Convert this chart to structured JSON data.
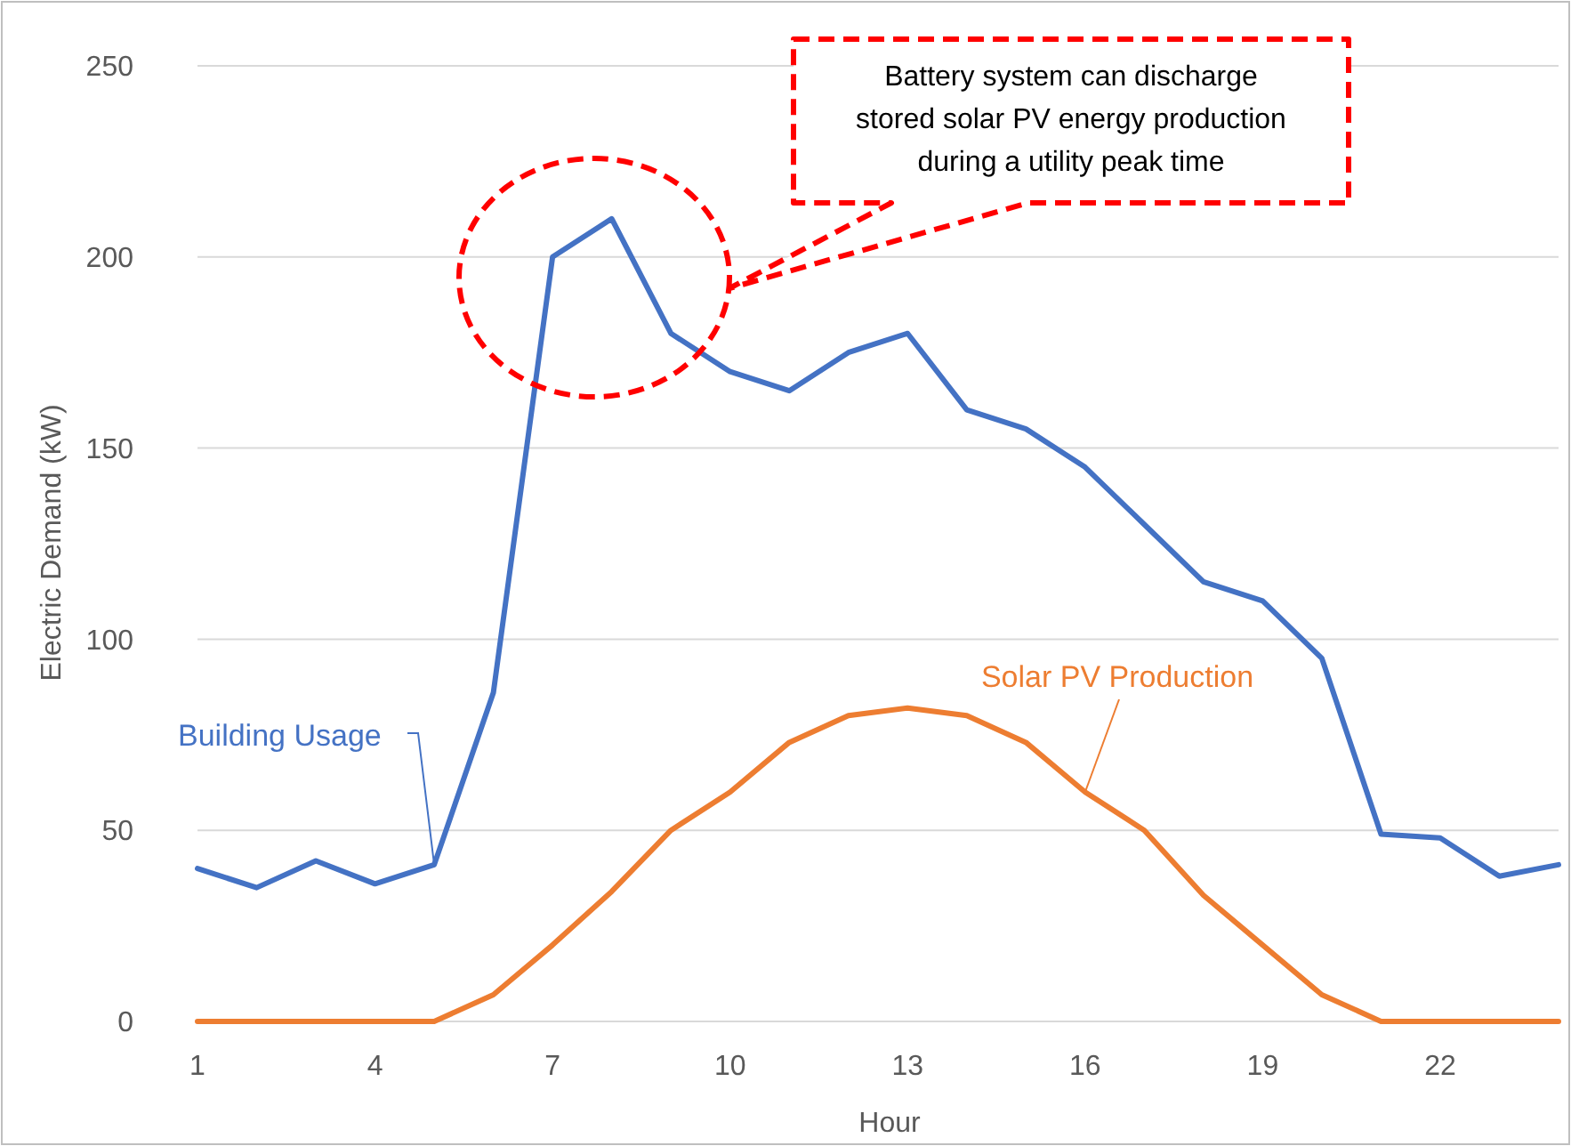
{
  "chart_data": {
    "type": "line",
    "xlabel": "Hour",
    "ylabel": "Electric Demand (kW)",
    "x": [
      1,
      2,
      3,
      4,
      5,
      6,
      7,
      8,
      9,
      10,
      11,
      12,
      13,
      14,
      15,
      16,
      17,
      18,
      19,
      20,
      21,
      22,
      23,
      24
    ],
    "series": [
      {
        "name": "Building Usage",
        "color": "#4472c4",
        "values": [
          40,
          35,
          42,
          36,
          41,
          86,
          200,
          210,
          180,
          170,
          165,
          175,
          180,
          160,
          155,
          145,
          130,
          115,
          110,
          95,
          49,
          48,
          38,
          41
        ]
      },
      {
        "name": "Solar PV Production",
        "color": "#ed7d31",
        "values": [
          0,
          0,
          0,
          0,
          0,
          7,
          20,
          34,
          50,
          60,
          73,
          80,
          82,
          80,
          73,
          60,
          50,
          33,
          20,
          7,
          0,
          0,
          0,
          0
        ]
      }
    ],
    "xlim": [
      1,
      24
    ],
    "xticks": [
      1,
      4,
      7,
      10,
      13,
      16,
      19,
      22
    ],
    "ylim": [
      0,
      250
    ],
    "yticks": [
      0,
      50,
      100,
      150,
      200,
      250
    ],
    "grid": "y",
    "legend": false,
    "marker": "none",
    "line_style": "solid",
    "annotations": [
      "Battery system can discharge stored solar PV energy production during a utility peak time"
    ]
  }
}
